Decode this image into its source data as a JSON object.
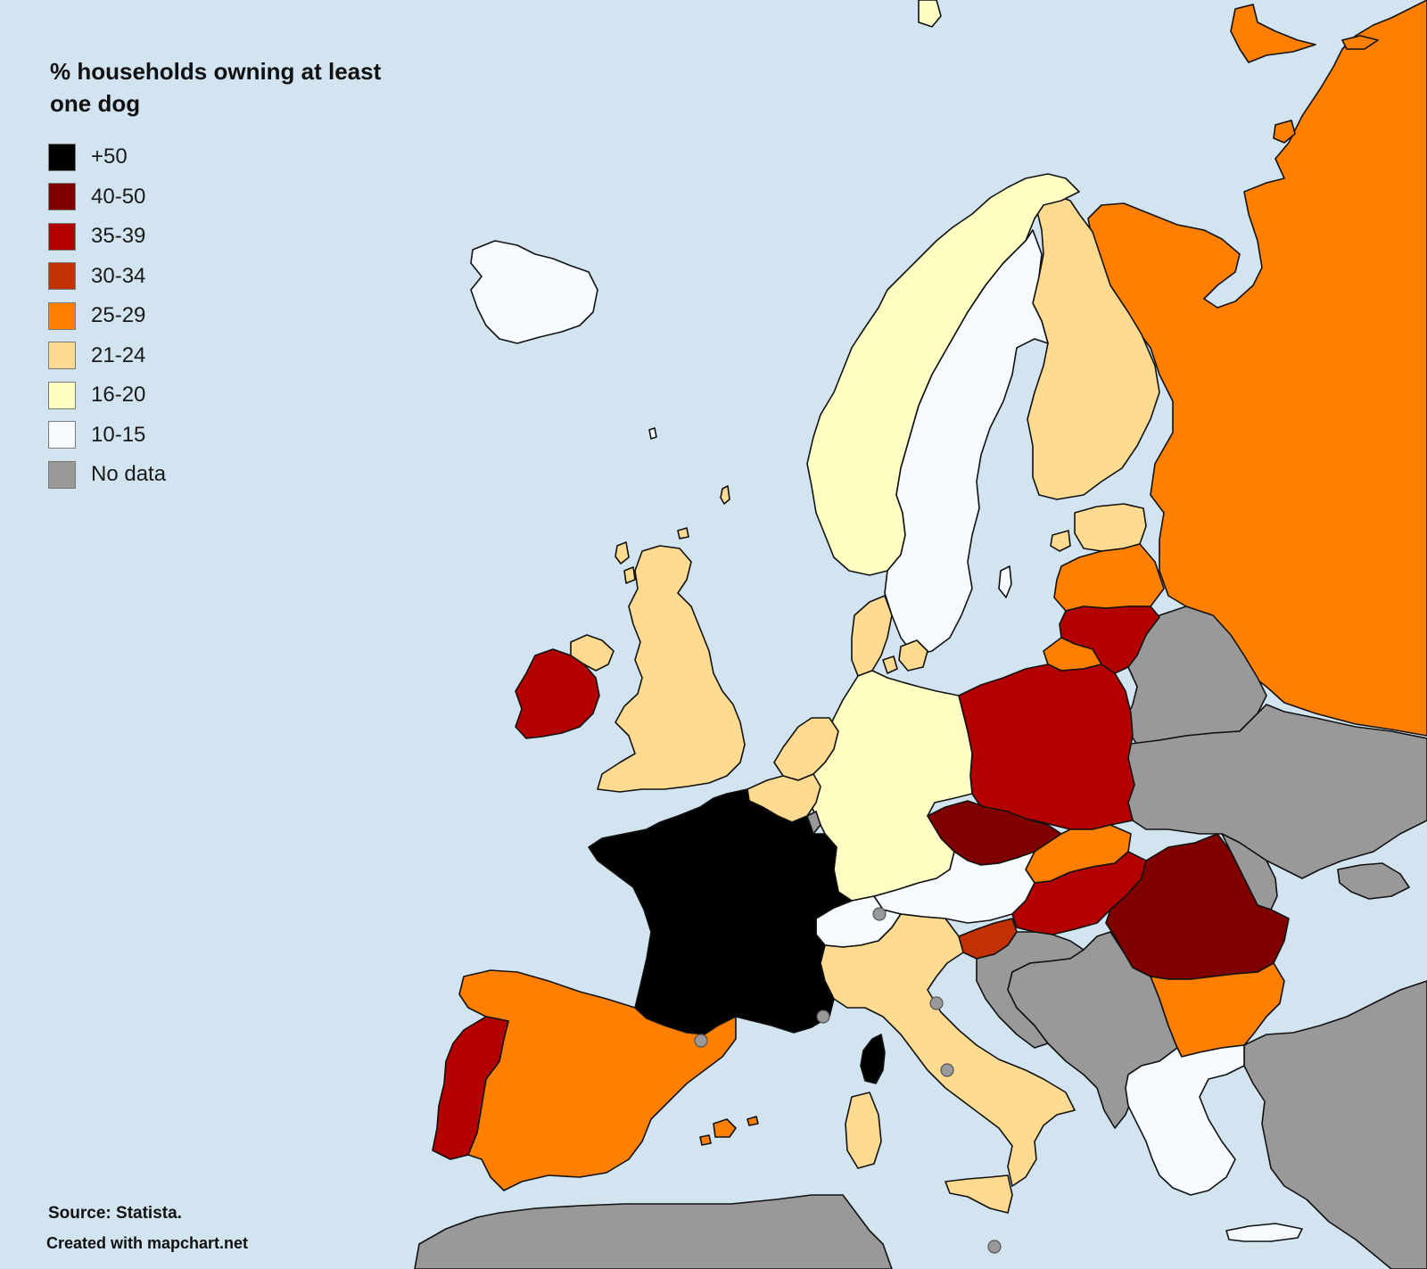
{
  "legend": {
    "title": "% households owning at least one dog",
    "items": [
      {
        "label": "+50",
        "color": "#000000"
      },
      {
        "label": "40-50",
        "color": "#800000"
      },
      {
        "label": "35-39",
        "color": "#b30000"
      },
      {
        "label": "30-34",
        "color": "#c23104"
      },
      {
        "label": "25-29",
        "color": "#ff7f00"
      },
      {
        "label": "21-24",
        "color": "#ffdb91"
      },
      {
        "label": "16-20",
        "color": "#ffffc3"
      },
      {
        "label": "10-15",
        "color": "#f6fbff"
      },
      {
        "label": "No data",
        "color": "#999999"
      }
    ]
  },
  "footer": {
    "source": "Source: Statista.",
    "credit": "Created with mapchart.net"
  },
  "colors": {
    "sea": "#d2e4f0",
    "border": "#111111"
  },
  "countries": [
    {
      "name": "Iceland",
      "category": "10-15"
    },
    {
      "name": "Ireland",
      "category": "35-39"
    },
    {
      "name": "Northern Ireland",
      "category": "21-24"
    },
    {
      "name": "United Kingdom",
      "category": "21-24"
    },
    {
      "name": "Norway",
      "category": "16-20"
    },
    {
      "name": "Sweden",
      "category": "10-15"
    },
    {
      "name": "Finland",
      "category": "21-24"
    },
    {
      "name": "Russia",
      "category": "25-29"
    },
    {
      "name": "Estonia",
      "category": "21-24"
    },
    {
      "name": "Latvia",
      "category": "25-29"
    },
    {
      "name": "Lithuania",
      "category": "35-39"
    },
    {
      "name": "Kaliningrad",
      "category": "25-29"
    },
    {
      "name": "Denmark",
      "category": "21-24"
    },
    {
      "name": "Netherlands",
      "category": "21-24"
    },
    {
      "name": "Belgium",
      "category": "21-24"
    },
    {
      "name": "Luxembourg",
      "category": "No data"
    },
    {
      "name": "Germany",
      "category": "16-20"
    },
    {
      "name": "Poland",
      "category": "35-39"
    },
    {
      "name": "Belarus",
      "category": "No data"
    },
    {
      "name": "Ukraine",
      "category": "No data"
    },
    {
      "name": "Czechia",
      "category": "40-50"
    },
    {
      "name": "Slovakia",
      "category": "25-29"
    },
    {
      "name": "Austria",
      "category": "10-15"
    },
    {
      "name": "Hungary",
      "category": "35-39"
    },
    {
      "name": "Romania",
      "category": "40-50"
    },
    {
      "name": "Moldova",
      "category": "No data"
    },
    {
      "name": "Switzerland",
      "category": "10-15"
    },
    {
      "name": "France",
      "category": "+50"
    },
    {
      "name": "Corsica",
      "category": "+50"
    },
    {
      "name": "Slovenia",
      "category": "30-34"
    },
    {
      "name": "Croatia",
      "category": "No data"
    },
    {
      "name": "Balkans",
      "category": "No data"
    },
    {
      "name": "Bulgaria",
      "category": "25-29"
    },
    {
      "name": "Greece",
      "category": "10-15"
    },
    {
      "name": "Turkey",
      "category": "No data"
    },
    {
      "name": "Italy",
      "category": "21-24"
    },
    {
      "name": "Sardinia",
      "category": "21-24"
    },
    {
      "name": "Sicily",
      "category": "21-24"
    },
    {
      "name": "Spain",
      "category": "25-29"
    },
    {
      "name": "Balearic Islands",
      "category": "25-29"
    },
    {
      "name": "Portugal",
      "category": "35-39"
    },
    {
      "name": "North Africa",
      "category": "No data"
    }
  ]
}
